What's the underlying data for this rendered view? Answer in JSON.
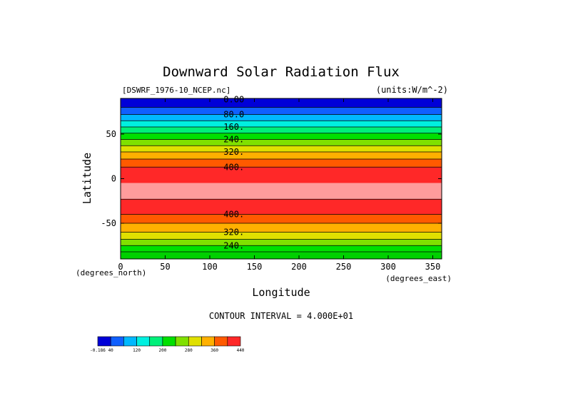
{
  "chart_data": {
    "type": "heatmap",
    "title": "Downward Solar Radiation Flux",
    "file_label": "[DSWRF_1976-10_NCEP.nc]",
    "units_label": "(units:W/m^-2)",
    "xlabel": "Longitude",
    "ylabel": "Latitude",
    "x_unit_label": "(degrees_east)",
    "y_unit_label": "(degrees_north)",
    "xlim": [
      0,
      360
    ],
    "ylim": [
      -90,
      90
    ],
    "x_ticks": [
      "0",
      "50",
      "100",
      "150",
      "200",
      "250",
      "300",
      "350"
    ],
    "y_ticks": [
      "50",
      "0",
      "-50"
    ],
    "contour_interval_text": "CONTOUR INTERVAL = 4.000E+01",
    "bands": [
      {
        "lat_top": 90,
        "lat_bottom": 80,
        "color": "#0000d8"
      },
      {
        "lat_top": 80,
        "lat_bottom": 72,
        "color": "#1060ff"
      },
      {
        "lat_top": 72,
        "lat_bottom": 65,
        "color": "#00b8ff"
      },
      {
        "lat_top": 65,
        "lat_bottom": 58,
        "color": "#00f0e0"
      },
      {
        "lat_top": 58,
        "lat_bottom": 51,
        "color": "#00f07a"
      },
      {
        "lat_top": 51,
        "lat_bottom": 44,
        "color": "#00e000"
      },
      {
        "lat_top": 44,
        "lat_bottom": 37,
        "color": "#80e000"
      },
      {
        "lat_top": 37,
        "lat_bottom": 30,
        "color": "#e0e000"
      },
      {
        "lat_top": 30,
        "lat_bottom": 22,
        "color": "#ffb000"
      },
      {
        "lat_top": 22,
        "lat_bottom": 13,
        "color": "#ff5a00"
      },
      {
        "lat_top": 13,
        "lat_bottom": -5,
        "color": "#ff2828"
      },
      {
        "lat_top": -5,
        "lat_bottom": -23,
        "color": "#ff9c9c"
      },
      {
        "lat_top": -23,
        "lat_bottom": -40,
        "color": "#ff2828"
      },
      {
        "lat_top": -40,
        "lat_bottom": -50,
        "color": "#ff5a00"
      },
      {
        "lat_top": -50,
        "lat_bottom": -60,
        "color": "#ffb000"
      },
      {
        "lat_top": -60,
        "lat_bottom": -68,
        "color": "#e0e000"
      },
      {
        "lat_top": -68,
        "lat_bottom": -75,
        "color": "#80e000"
      },
      {
        "lat_top": -75,
        "lat_bottom": -82,
        "color": "#00e000"
      },
      {
        "lat_top": -82,
        "lat_bottom": -90,
        "color": "#00d000"
      }
    ],
    "contour_lines": [
      80,
      72,
      65,
      58,
      51,
      44,
      37,
      30,
      22,
      13,
      -23,
      -40,
      -50,
      -60,
      -68,
      -75,
      -82
    ],
    "contour_labels": [
      {
        "text": "0.00",
        "lat": 89
      },
      {
        "text": "80.0",
        "lat": 72
      },
      {
        "text": "160.",
        "lat": 58
      },
      {
        "text": "240.",
        "lat": 44
      },
      {
        "text": "320.",
        "lat": 30
      },
      {
        "text": "400.",
        "lat": 13
      },
      {
        "text": "400.",
        "lat": -40
      },
      {
        "text": "320.",
        "lat": -60
      },
      {
        "text": "240.",
        "lat": -75
      }
    ],
    "colorbar": {
      "colors": [
        "#0000d8",
        "#1060ff",
        "#00b8ff",
        "#00f0e0",
        "#00f07a",
        "#00e000",
        "#80e000",
        "#e0e000",
        "#ffb000",
        "#ff5a00",
        "#ff2828"
      ],
      "labels": [
        {
          "text": "-0.186",
          "index": 0
        },
        {
          "text": "40",
          "index": 1
        },
        {
          "text": "120",
          "index": 3
        },
        {
          "text": "200",
          "index": 5
        },
        {
          "text": "280",
          "index": 7
        },
        {
          "text": "360",
          "index": 9
        },
        {
          "text": "440",
          "index": 11
        }
      ]
    }
  }
}
